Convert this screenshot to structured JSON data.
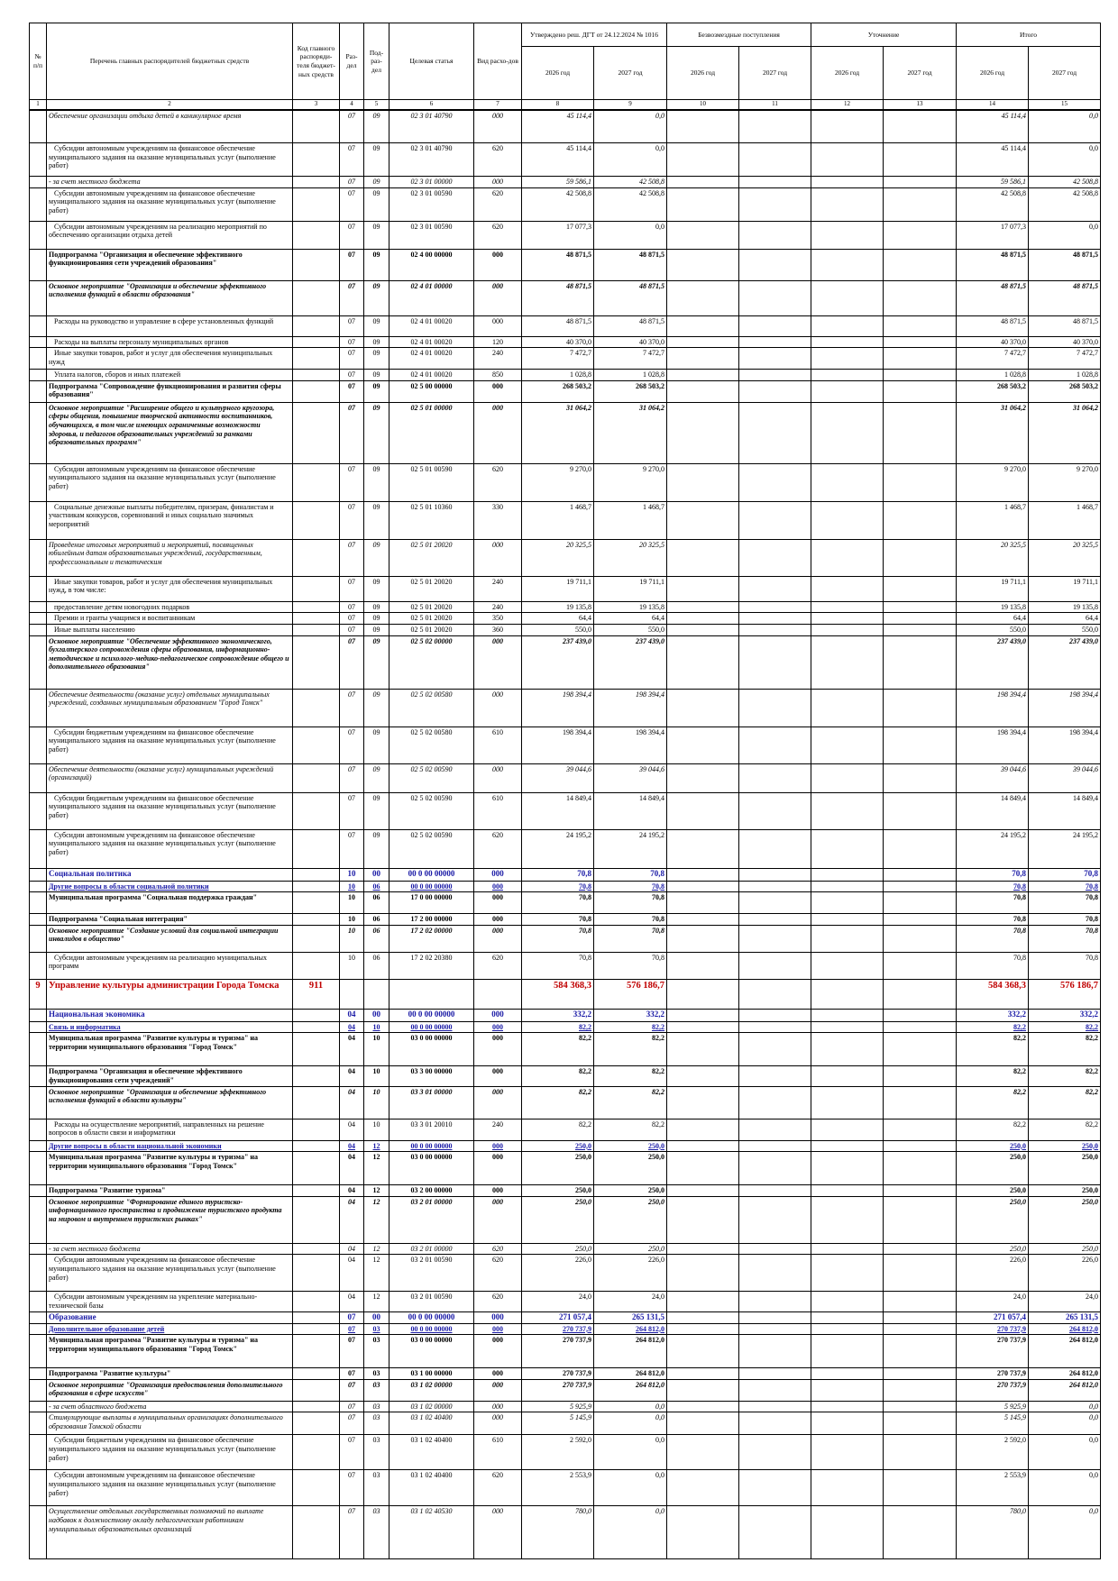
{
  "header": {
    "col_no": "№ п/п",
    "col_name": "Перечень главных распорядителей бюджетных средств",
    "col_code": "Код главного распоряди-теля бюджет-ных средств",
    "col_section": "Раз-дел",
    "col_subsection": "Под-раз-дел",
    "col_target": "Целевая статья",
    "col_kind": "Вид расхо-дов",
    "group_approved": "Утверждено реш. ДГТ от 24.12.2024 № 1016",
    "group_grants": "Безвозмездные поступления",
    "group_adjust": "Уточнение",
    "group_total": "Итого",
    "years": [
      "2026 год",
      "2027 год",
      "2026 год",
      "2027 год",
      "2026 год",
      "2027 год",
      "2026 год",
      "2027 год"
    ],
    "numbers": [
      "1",
      "2",
      "3",
      "4",
      "5",
      "6",
      "7",
      "8",
      "9",
      "10",
      "11",
      "12",
      "13",
      "14",
      "15"
    ]
  },
  "rows": [
    {
      "name": "Обеспечение организации отдыха детей в каникулярное время",
      "r": "07",
      "p": "09",
      "t": "02 3 01 40790",
      "v": "000",
      "a26": "45 114,4",
      "a27": "0,0",
      "s26": "45 114,4",
      "s27": "0,0"
    },
    {
      "name": "Субсидии автономным учреждениям на финансовое обеспечение муниципального задания на оказание муниципальных услуг (выполнение работ)",
      "r": "07",
      "p": "09",
      "t": "02 3 01 40790",
      "v": "620",
      "a26": "45 114,4",
      "a27": "0,0",
      "s26": "45 114,4",
      "s27": "0,0"
    },
    {
      "name": "- за счет местного бюджета",
      "r": "07",
      "p": "09",
      "t": "02 3 01 00000",
      "v": "000",
      "a26": "59 586,1",
      "a27": "42 508,8",
      "s26": "59 586,1",
      "s27": "42 508,8"
    },
    {
      "name": "Субсидии автономным учреждениям на финансовое обеспечение муниципального задания на оказание муниципальных услуг (выполнение работ)",
      "r": "07",
      "p": "09",
      "t": "02 3 01 00590",
      "v": "620",
      "a26": "42 508,8",
      "a27": "42 508,8",
      "s26": "42 508,8",
      "s27": "42 508,8"
    },
    {
      "name": "Субсидии автономным учреждениям на реализацию мероприятий по обеспечению организации отдыха детей",
      "r": "07",
      "p": "09",
      "t": "02 3 01 00590",
      "v": "620",
      "a26": "17 077,3",
      "a27": "0,0",
      "s26": "17 077,3",
      "s27": "0,0"
    },
    {
      "name": "Подпрограмма \"Организация и обеспечение эффективного функционирования сети учреждений образования\"",
      "r": "07",
      "p": "09",
      "t": "02 4 00 00000",
      "v": "000",
      "a26": "48 871,5",
      "a27": "48 871,5",
      "s26": "48 871,5",
      "s27": "48 871,5"
    },
    {
      "name": "Основное мероприятие \"Организация и обеспечение эффективного исполнения функций в области образования\"",
      "r": "07",
      "p": "09",
      "t": "02 4 01 00000",
      "v": "000",
      "a26": "48 871,5",
      "a27": "48 871,5",
      "s26": "48 871,5",
      "s27": "48 871,5"
    },
    {
      "name": "Расходы на руководство и управление в сфере установленных функций",
      "r": "07",
      "p": "09",
      "t": "02 4 01 00020",
      "v": "000",
      "a26": "48 871,5",
      "a27": "48 871,5",
      "s26": "48 871,5",
      "s27": "48 871,5"
    },
    {
      "name": "Расходы на выплаты персоналу муниципальных органов",
      "r": "07",
      "p": "09",
      "t": "02 4 01 00020",
      "v": "120",
      "a26": "40 370,0",
      "a27": "40 370,0",
      "s26": "40 370,0",
      "s27": "40 370,0"
    },
    {
      "name": "Иные закупки товаров, работ и услуг для обеспечения муниципальных нужд",
      "r": "07",
      "p": "09",
      "t": "02 4 01 00020",
      "v": "240",
      "a26": "7 472,7",
      "a27": "7 472,7",
      "s26": "7 472,7",
      "s27": "7 472,7"
    },
    {
      "name": "Уплата налогов, сборов и иных платежей",
      "r": "07",
      "p": "09",
      "t": "02 4 01 00020",
      "v": "850",
      "a26": "1 028,8",
      "a27": "1 028,8",
      "s26": "1 028,8",
      "s27": "1 028,8"
    },
    {
      "name": "Подпрограмма \"Сопровождение функционирования и развития сферы образования\"",
      "r": "07",
      "p": "09",
      "t": "02 5 00 00000",
      "v": "000",
      "a26": "268 503,2",
      "a27": "268 503,2",
      "s26": "268 503,2",
      "s27": "268 503,2"
    },
    {
      "name": "Основное мероприятие \"Расширение общего и культурного кругозора, сферы общения, повышение творческой активности воспитанников, обучающихся, в том числе имеющих ограниченные возможности здоровья, и педагогов образовательных учреждений за рамками образовательных программ\"",
      "r": "07",
      "p": "09",
      "t": "02 5 01 00000",
      "v": "000",
      "a26": "31 064,2",
      "a27": "31 064,2",
      "s26": "31 064,2",
      "s27": "31 064,2"
    },
    {
      "name": "Субсидии автономным учреждениям на финансовое обеспечение муниципального задания на оказание муниципальных услуг (выполнение работ)",
      "r": "07",
      "p": "09",
      "t": "02 5 01 00590",
      "v": "620",
      "a26": "9 270,0",
      "a27": "9 270,0",
      "s26": "9 270,0",
      "s27": "9 270,0"
    },
    {
      "name": "Социальные денежные выплаты победителям, призерам, финалистам и участникам конкурсов, соревнований и иных социально значимых мероприятий",
      "r": "07",
      "p": "09",
      "t": "02 5 01 10360",
      "v": "330",
      "a26": "1 468,7",
      "a27": "1 468,7",
      "s26": "1 468,7",
      "s27": "1 468,7"
    },
    {
      "name": "Проведение итоговых мероприятий и мероприятий, посвященных юбилейным датам образовательных учреждений, государственным, профессиональным и тематическим",
      "r": "07",
      "p": "09",
      "t": "02 5 01 20020",
      "v": "000",
      "a26": "20 325,5",
      "a27": "20 325,5",
      "s26": "20 325,5",
      "s27": "20 325,5"
    },
    {
      "name": "Иные закупки товаров, работ и услуг для обеспечения муниципальных нужд, в том числе:",
      "r": "07",
      "p": "09",
      "t": "02 5 01 20020",
      "v": "240",
      "a26": "19 711,1",
      "a27": "19 711,1",
      "s26": "19 711,1",
      "s27": "19 711,1"
    },
    {
      "name": "предоставление детям новогодних подарков",
      "r": "07",
      "p": "09",
      "t": "02 5 01 20020",
      "v": "240",
      "a26": "19 135,8",
      "a27": "19 135,8",
      "s26": "19 135,8",
      "s27": "19 135,8"
    },
    {
      "name": "Премии и гранты учащимся и воспитанникам",
      "r": "07",
      "p": "09",
      "t": "02 5 01 20020",
      "v": "350",
      "a26": "64,4",
      "a27": "64,4",
      "s26": "64,4",
      "s27": "64,4"
    },
    {
      "name": "Иные выплаты населению",
      "r": "07",
      "p": "09",
      "t": "02 5 01 20020",
      "v": "360",
      "a26": "550,0",
      "a27": "550,0",
      "s26": "550,0",
      "s27": "550,0"
    },
    {
      "name": "Основное мероприятие \"Обеспечение эффективного экономического, бухгалтерского сопровождения сферы образования, информационно-методическое и психолого-медико-педагогическое сопровождение общего и дополнительного образования\"",
      "r": "07",
      "p": "09",
      "t": "02 5 02 00000",
      "v": "000",
      "a26": "237 439,0",
      "a27": "237 439,0",
      "s26": "237 439,0",
      "s27": "237 439,0"
    },
    {
      "name": "Обеспечение деятельности (оказание услуг) отдельных муниципальных учреждений, созданных муниципальным образованием \"Город Томск\"",
      "r": "07",
      "p": "09",
      "t": "02 5 02 00580",
      "v": "000",
      "a26": "198 394,4",
      "a27": "198 394,4",
      "s26": "198 394,4",
      "s27": "198 394,4"
    },
    {
      "name": "Субсидии бюджетным учреждениям на финансовое обеспечение муниципального задания на оказание муниципальных услуг (выполнение работ)",
      "r": "07",
      "p": "09",
      "t": "02 5 02 00580",
      "v": "610",
      "a26": "198 394,4",
      "a27": "198 394,4",
      "s26": "198 394,4",
      "s27": "198 394,4"
    },
    {
      "name": "Обеспечение деятельности (оказание услуг) муниципальных учреждений (организаций)",
      "r": "07",
      "p": "09",
      "t": "02 5 02 00590",
      "v": "000",
      "a26": "39 044,6",
      "a27": "39 044,6",
      "s26": "39 044,6",
      "s27": "39 044,6"
    },
    {
      "name": "Субсидии бюджетным учреждениям на финансовое обеспечение муниципального задания на оказание муниципальных услуг (выполнение работ)",
      "r": "07",
      "p": "09",
      "t": "02 5 02 00590",
      "v": "610",
      "a26": "14 849,4",
      "a27": "14 849,4",
      "s26": "14 849,4",
      "s27": "14 849,4"
    },
    {
      "name": "Субсидии автономным учреждениям на финансовое обеспечение муниципального задания на оказание муниципальных услуг (выполнение работ)",
      "r": "07",
      "p": "09",
      "t": "02 5 02 00590",
      "v": "620",
      "a26": "24 195,2",
      "a27": "24 195,2",
      "s26": "24 195,2",
      "s27": "24 195,2"
    },
    {
      "name": "Социальная политика",
      "r": "10",
      "p": "00",
      "t": "00 0 00 00000",
      "v": "000",
      "a26": "70,8",
      "a27": "70,8",
      "s26": "70,8",
      "s27": "70,8"
    },
    {
      "name": "Другие вопросы в области социальной политики",
      "r": "10",
      "p": "06",
      "t": "00 0 00 00000",
      "v": "000",
      "a26": "70,8",
      "a27": "70,8",
      "s26": "70,8",
      "s27": "70,8"
    },
    {
      "name": "Муниципальная программа \"Социальная поддержка граждан\"",
      "r": "10",
      "p": "06",
      "t": "17 0 00 00000",
      "v": "000",
      "a26": "70,8",
      "a27": "70,8",
      "s26": "70,8",
      "s27": "70,8"
    },
    {
      "name": "Подпрограмма \"Социальная интеграция\"",
      "r": "10",
      "p": "06",
      "t": "17 2 00 00000",
      "v": "000",
      "a26": "70,8",
      "a27": "70,8",
      "s26": "70,8",
      "s27": "70,8"
    },
    {
      "name": "Основное мероприятие \"Создание условий для социальной интеграции инвалидов в общество\"",
      "r": "10",
      "p": "06",
      "t": "17 2 02 00000",
      "v": "000",
      "a26": "70,8",
      "a27": "70,8",
      "s26": "70,8",
      "s27": "70,8"
    },
    {
      "name": "Субсидии автономным учреждениям на реализацию муниципальных программ",
      "r": "10",
      "p": "06",
      "t": "17 2 02 20380",
      "v": "620",
      "a26": "70,8",
      "a27": "70,8",
      "s26": "70,8",
      "s27": "70,8"
    },
    {
      "num": "9",
      "name": "Управление культуры администрации Города Томска",
      "code": "911",
      "a26": "584 368,3",
      "a27": "576 186,7",
      "s26": "584 368,3",
      "s27": "576 186,7"
    },
    {
      "name": "Национальная экономика",
      "r": "04",
      "p": "00",
      "t": "00 0 00 00000",
      "v": "000",
      "a26": "332,2",
      "a27": "332,2",
      "s26": "332,2",
      "s27": "332,2"
    },
    {
      "name": "Связь и информатика",
      "r": "04",
      "p": "10",
      "t": "00 0 00 00000",
      "v": "000",
      "a26": "82,2",
      "a27": "82,2",
      "s26": "82,2",
      "s27": "82,2"
    },
    {
      "name": "Муниципальная программа \"Развитие культуры и туризма\" на территории муниципального образования \"Город Томск\"",
      "r": "04",
      "p": "10",
      "t": "03 0 00 00000",
      "v": "000",
      "a26": "82,2",
      "a27": "82,2",
      "s26": "82,2",
      "s27": "82,2"
    },
    {
      "name": "Подпрограмма \"Организация и обеспечение эффективного функционирования сети учреждений\"",
      "r": "04",
      "p": "10",
      "t": "03 3 00 00000",
      "v": "000",
      "a26": "82,2",
      "a27": "82,2",
      "s26": "82,2",
      "s27": "82,2"
    },
    {
      "name": "Основное мероприятие \"Организация и обеспечение эффективного исполнения функций в области культуры\"",
      "r": "04",
      "p": "10",
      "t": "03 3 01 00000",
      "v": "000",
      "a26": "82,2",
      "a27": "82,2",
      "s26": "82,2",
      "s27": "82,2"
    },
    {
      "name": "Расходы на осуществление мероприятий, направленных на решение вопросов в области связи и информатики",
      "r": "04",
      "p": "10",
      "t": "03 3 01 20010",
      "v": "240",
      "a26": "82,2",
      "a27": "82,2",
      "s26": "82,2",
      "s27": "82,2"
    },
    {
      "name": "Другие вопросы в области национальной экономики",
      "r": "04",
      "p": "12",
      "t": "00 0 00 00000",
      "v": "000",
      "a26": "250,0",
      "a27": "250,0",
      "s26": "250,0",
      "s27": "250,0"
    },
    {
      "name": "Муниципальная программа \"Развитие культуры и туризма\" на территории муниципального образования \"Город Томск\"",
      "r": "04",
      "p": "12",
      "t": "03 0 00 00000",
      "v": "000",
      "a26": "250,0",
      "a27": "250,0",
      "s26": "250,0",
      "s27": "250,0"
    },
    {
      "name": "Подпрограмма \"Развитие туризма\"",
      "r": "04",
      "p": "12",
      "t": "03 2 00 00000",
      "v": "000",
      "a26": "250,0",
      "a27": "250,0",
      "s26": "250,0",
      "s27": "250,0"
    },
    {
      "name": "Основное мероприятие \"Формирование единого туристско-информационного пространства и продвижение туристского продукта на мировом и внутреннем туристских рынках\"",
      "r": "04",
      "p": "12",
      "t": "03 2 01 00000",
      "v": "000",
      "a26": "250,0",
      "a27": "250,0",
      "s26": "250,0",
      "s27": "250,0"
    },
    {
      "name": "- за счет местного бюджета",
      "r": "04",
      "p": "12",
      "t": "03 2 01 00000",
      "v": "620",
      "a26": "250,0",
      "a27": "250,0",
      "s26": "250,0",
      "s27": "250,0"
    },
    {
      "name": "Субсидии автономным учреждениям на финансовое обеспечение муниципального задания на оказание муниципальных услуг (выполнение работ)",
      "r": "04",
      "p": "12",
      "t": "03 2 01 00590",
      "v": "620",
      "a26": "226,0",
      "a27": "226,0",
      "s26": "226,0",
      "s27": "226,0"
    },
    {
      "name": "Субсидии автономным учреждениям на укрепление материально-технической базы",
      "r": "04",
      "p": "12",
      "t": "03 2 01 00590",
      "v": "620",
      "a26": "24,0",
      "a27": "24,0",
      "s26": "24,0",
      "s27": "24,0"
    },
    {
      "name": "Образование",
      "r": "07",
      "p": "00",
      "t": "00 0 00 00000",
      "v": "000",
      "a26": "271 057,4",
      "a27": "265 131,5",
      "s26": "271 057,4",
      "s27": "265 131,5"
    },
    {
      "name": "Дополнительное образование детей",
      "r": "07",
      "p": "03",
      "t": "00 0 00 00000",
      "v": "000",
      "a26": "270 737,9",
      "a27": "264 812,0",
      "s26": "270 737,9",
      "s27": "264 812,0"
    },
    {
      "name": "Муниципальная программа \"Развитие культуры и туризма\" на территории муниципального образования \"Город Томск\"",
      "r": "07",
      "p": "03",
      "t": "03 0 00 00000",
      "v": "000",
      "a26": "270 737,9",
      "a27": "264 812,0",
      "s26": "270 737,9",
      "s27": "264 812,0"
    },
    {
      "name": "Подпрограмма \"Развитие культуры\"",
      "r": "07",
      "p": "03",
      "t": "03 1 00 00000",
      "v": "000",
      "a26": "270 737,9",
      "a27": "264 812,0",
      "s26": "270 737,9",
      "s27": "264 812,0"
    },
    {
      "name": "Основное мероприятие \"Организация предоставления дополнительного образования в сфере искусств\"",
      "r": "07",
      "p": "03",
      "t": "03 1 02 00000",
      "v": "000",
      "a26": "270 737,9",
      "a27": "264 812,0",
      "s26": "270 737,9",
      "s27": "264 812,0"
    },
    {
      "name": "- за счет областного бюджета",
      "r": "07",
      "p": "03",
      "t": "03 1 02 00000",
      "v": "000",
      "a26": "5 925,9",
      "a27": "0,0",
      "s26": "5 925,9",
      "s27": "0,0"
    },
    {
      "name": "Стимулирующие выплаты в муниципальных организациях дополнительного образования Томской области",
      "r": "07",
      "p": "03",
      "t": "03 1 02 40400",
      "v": "000",
      "a26": "5 145,9",
      "a27": "0,0",
      "s26": "5 145,9",
      "s27": "0,0"
    },
    {
      "name": "Субсидии бюджетным учреждениям на финансовое обеспечение муниципального задания на оказание муниципальных услуг (выполнение работ)",
      "r": "07",
      "p": "03",
      "t": "03 1 02 40400",
      "v": "610",
      "a26": "2 592,0",
      "a27": "0,0",
      "s26": "2 592,0",
      "s27": "0,0"
    },
    {
      "name": "Субсидии автономным учреждениям на финансовое обеспечение муниципального задания на оказание муниципальных услуг (выполнение работ)",
      "r": "07",
      "p": "03",
      "t": "03 1 02 40400",
      "v": "620",
      "a26": "2 553,9",
      "a27": "0,0",
      "s26": "2 553,9",
      "s27": "0,0"
    },
    {
      "name": "Осуществление отдельных государственных полномочий по выплате надбавок к должностному окладу педагогическим работникам муниципальных образовательных организаций",
      "r": "07",
      "p": "03",
      "t": "03 1 02 40530",
      "v": "000",
      "a26": "780,0",
      "a27": "0,0",
      "s26": "780,0",
      "s27": "0,0"
    }
  ]
}
